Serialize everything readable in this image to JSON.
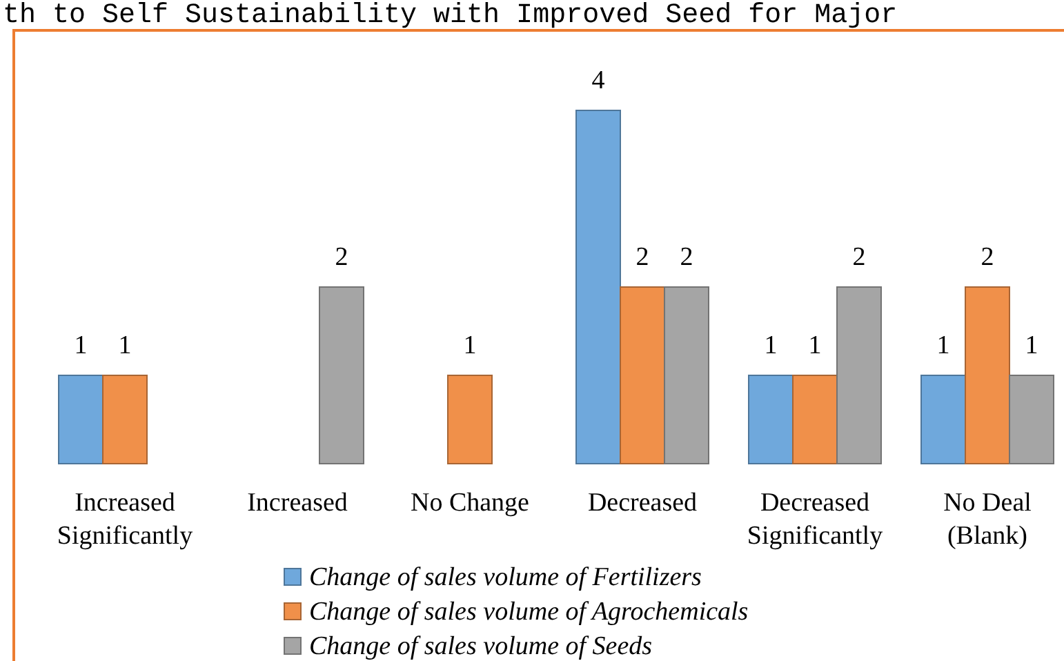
{
  "chart_data": {
    "type": "bar",
    "title": "th to Self Sustainability with Improved Seed for Major",
    "categories": [
      "Increased\nSignificantly",
      "Increased",
      "No Change",
      "Decreased",
      "Decreased\nSignificantly",
      "No Deal\n(Blank)"
    ],
    "series": [
      {
        "name": "Change of sales volume of Fertilizers",
        "color": "#6fa8dc",
        "values": [
          1,
          null,
          null,
          4,
          1,
          1
        ]
      },
      {
        "name": "Change of sales volume of Agrochemicals",
        "color": "#f0904a",
        "values": [
          1,
          null,
          1,
          2,
          1,
          2
        ]
      },
      {
        "name": "Change of sales volume of Seeds",
        "color": "#a5a5a5",
        "values": [
          null,
          2,
          null,
          2,
          2,
          1
        ]
      }
    ],
    "data_labels": true,
    "legend": "bottom",
    "grid": false
  }
}
